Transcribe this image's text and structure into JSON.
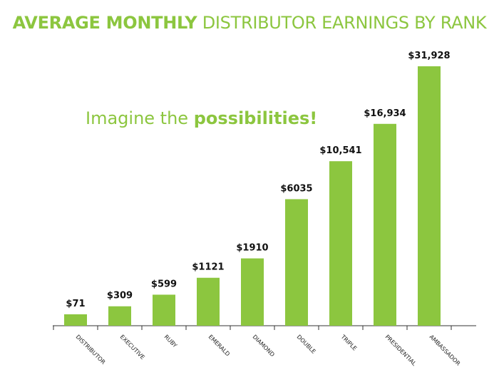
{
  "title": {
    "bold": "AVERAGE MONTHLY",
    "light": "DISTRIBUTOR EARNINGS BY RANK"
  },
  "tagline": {
    "light": "Imagine the",
    "bold": "possibilities!"
  },
  "colors": {
    "bar": "#8cc63f",
    "accent": "#8cc63f",
    "axis": "#333333",
    "label": "#111111"
  },
  "chart_data": {
    "type": "bar",
    "categories": [
      "DISTRIBUTOR",
      "EXECUTIVE",
      "RUBY",
      "EMERALD",
      "DIAMOND",
      "DOUBLE",
      "TRIPLE",
      "PRESIDENTIAL",
      "AMBASSADOR"
    ],
    "values": [
      71,
      309,
      599,
      1121,
      1910,
      6035,
      10541,
      16934,
      31928
    ],
    "data_labels": [
      "$71",
      "$309",
      "$599",
      "$1121",
      "$1910",
      "$6035",
      "$10,541",
      "$16,934",
      "$31,928"
    ],
    "title": "AVERAGE MONTHLY DISTRIBUTOR EARNINGS BY RANK",
    "grid": false,
    "y_axis_visible": false,
    "scale": "non-linear (pictorial)"
  }
}
